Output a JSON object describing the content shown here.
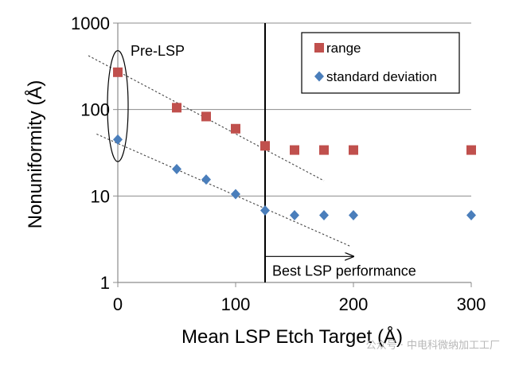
{
  "chart_data": {
    "type": "scatter",
    "title": "",
    "xlabel": "Mean LSP Etch Target (Å)",
    "ylabel": "Nonuniformity (Å)",
    "xscale": "linear",
    "yscale": "log",
    "xlim": [
      0,
      300
    ],
    "ylim": [
      1,
      1000
    ],
    "xticks": [
      "0",
      "100",
      "200",
      "300"
    ],
    "xtick_values": [
      0,
      100,
      200,
      300
    ],
    "yticks": [
      "1",
      "10",
      "100",
      "1000"
    ],
    "ytick_values": [
      1,
      10,
      100,
      1000
    ],
    "grid": "horizontal",
    "legend_position": "top-right",
    "series": [
      {
        "name": "range",
        "marker": "square",
        "color": "#c0504d",
        "x": [
          0,
          50,
          75,
          100,
          125,
          150,
          175,
          200,
          300
        ],
        "y": [
          270,
          105,
          83,
          60,
          38,
          34,
          34,
          34,
          34
        ]
      },
      {
        "name": "standard deviation",
        "marker": "diamond",
        "color": "#4a7ebb",
        "x": [
          0,
          50,
          75,
          100,
          125,
          150,
          175,
          200,
          300
        ],
        "y": [
          45,
          20.5,
          15.5,
          10.5,
          6.8,
          6,
          6,
          6,
          6
        ]
      }
    ],
    "trendlines": [
      {
        "name": "range-trend",
        "x": [
          -25,
          175
        ],
        "y": [
          420,
          15
        ]
      },
      {
        "name": "stdev-trend",
        "x": [
          -18,
          198
        ],
        "y": [
          52,
          2.6
        ]
      }
    ],
    "reference_line": {
      "x": 125
    },
    "annotations": {
      "pre_lsp": "Pre-LSP",
      "pre_lsp_ellipse": {
        "x": 0,
        "y_low": 25,
        "y_high": 480
      },
      "best": "Best LSP performance",
      "best_arrow": {
        "x_from": 125,
        "x_to": 200,
        "y": 2
      }
    }
  },
  "watermark": "公众号 · 中电科微纳加工工厂"
}
